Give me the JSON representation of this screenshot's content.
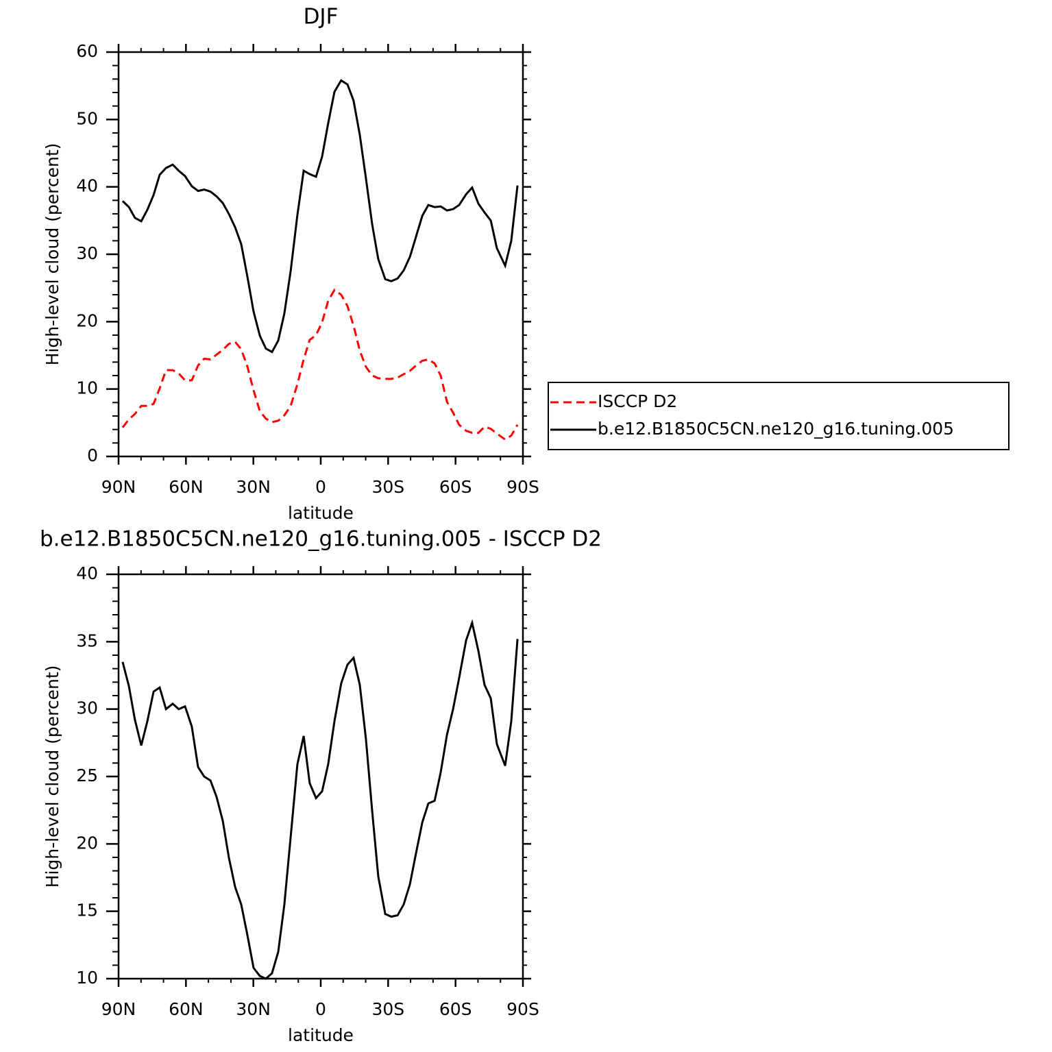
{
  "chart_data": [
    {
      "type": "line",
      "title": "DJF",
      "xlabel": "latitude",
      "ylabel": "High-level cloud (percent)",
      "x": [
        88.2,
        85.4,
        82.7,
        79.9,
        77.2,
        74.4,
        71.7,
        68.9,
        65.9,
        63.2,
        60.4,
        57.4,
        54.6,
        51.9,
        49.1,
        46.4,
        43.6,
        40.9,
        38.1,
        35.4,
        32.6,
        29.9,
        27.1,
        24.4,
        21.7,
        18.9,
        16.2,
        13.4,
        10.4,
        7.6,
        4.9,
        2.1,
        -0.6,
        -3.3,
        -6.1,
        -9.1,
        -11.9,
        -14.6,
        -17.4,
        -20.1,
        -22.9,
        -25.6,
        -28.7,
        -31.4,
        -34.2,
        -36.9,
        -39.7,
        -42.4,
        -45.2,
        -47.9,
        -50.7,
        -53.4,
        -56.2,
        -58.9,
        -61.6,
        -64.7,
        -67.4,
        -70.2,
        -72.9,
        -75.7,
        -78.4,
        -82.1,
        -84.8,
        -87.6
      ],
      "series": [
        {
          "name": "ISCCP D2",
          "color": "#ff0000",
          "style": "dashed",
          "values": [
            4.3,
            5.5,
            6.3,
            7.5,
            7.5,
            7.8,
            10.1,
            12.8,
            12.8,
            12.3,
            11.3,
            11.3,
            13.5,
            14.5,
            14.4,
            15.1,
            15.8,
            16.7,
            17.0,
            15.9,
            13.3,
            9.8,
            6.7,
            5.6,
            5.1,
            5.3,
            6.1,
            7.5,
            10.7,
            14.4,
            17.3,
            18.0,
            19.9,
            23.1,
            24.7,
            24.0,
            22.3,
            19.4,
            15.7,
            13.3,
            12.0,
            11.6,
            11.5,
            11.5,
            11.7,
            12.2,
            12.7,
            13.5,
            14.2,
            14.4,
            13.8,
            12.0,
            8.1,
            6.5,
            4.7,
            3.8,
            3.5,
            3.5,
            4.4,
            4.1,
            3.4,
            2.5,
            3.1,
            4.7
          ]
        },
        {
          "name": "b.e12.B1850C5CN.ne120_g16.tuning.005",
          "color": "#000000",
          "style": "solid",
          "values": [
            37.9,
            37.0,
            35.4,
            34.9,
            36.6,
            38.8,
            41.8,
            42.8,
            43.3,
            42.4,
            41.6,
            40.1,
            39.4,
            39.6,
            39.3,
            38.6,
            37.6,
            36.0,
            34.0,
            31.5,
            26.6,
            21.5,
            17.9,
            16.0,
            15.5,
            17.2,
            21.2,
            27.5,
            35.8,
            42.4,
            41.9,
            41.5,
            44.5,
            49.4,
            54.1,
            55.8,
            55.2,
            52.8,
            47.7,
            41.3,
            34.4,
            29.3,
            26.3,
            26.0,
            26.4,
            27.6,
            29.6,
            32.6,
            35.7,
            37.3,
            37.0,
            37.1,
            36.5,
            36.7,
            37.3,
            38.9,
            39.9,
            37.5,
            36.2,
            35.0,
            30.9,
            28.3,
            32.0,
            40.2
          ]
        }
      ],
      "xlim": [
        90,
        -90
      ],
      "xticks": [
        {
          "value": 90,
          "label": "90N"
        },
        {
          "value": 60,
          "label": "60N"
        },
        {
          "value": 30,
          "label": "30N"
        },
        0,
        {
          "value": -30,
          "label": "30S"
        },
        {
          "value": -60,
          "label": "60S"
        },
        {
          "value": -90,
          "label": "90S"
        }
      ],
      "xminorticks": [
        80,
        70,
        50,
        40,
        20,
        10,
        -10,
        -20,
        -40,
        -50,
        -70,
        -80
      ],
      "ylim": [
        0,
        60
      ],
      "yticks": [
        0,
        10,
        20,
        30,
        40,
        50,
        60
      ],
      "yminorticks": [
        2,
        4,
        6,
        8,
        12,
        14,
        16,
        18,
        22,
        24,
        26,
        28,
        32,
        34,
        36,
        38,
        42,
        44,
        46,
        48,
        52,
        54,
        56,
        58
      ],
      "legend": "right"
    },
    {
      "type": "line",
      "title": "b.e12.B1850C5CN.ne120_g16.tuning.005 - ISCCP D2",
      "xlabel": "latitude",
      "ylabel": "High-level cloud (percent)",
      "x": [
        88.2,
        85.4,
        82.7,
        79.9,
        77.2,
        74.4,
        71.7,
        68.9,
        65.9,
        63.2,
        60.4,
        57.4,
        54.6,
        51.9,
        49.1,
        46.4,
        43.6,
        40.9,
        38.1,
        35.4,
        32.6,
        29.9,
        27.1,
        24.4,
        21.7,
        18.9,
        16.2,
        13.4,
        10.4,
        7.6,
        4.9,
        2.1,
        -0.6,
        -3.3,
        -6.1,
        -9.1,
        -11.9,
        -14.6,
        -17.4,
        -20.1,
        -22.9,
        -25.6,
        -28.7,
        -31.4,
        -34.2,
        -36.9,
        -39.7,
        -42.4,
        -45.2,
        -47.9,
        -50.7,
        -53.4,
        -56.2,
        -58.9,
        -61.6,
        -64.7,
        -67.4,
        -70.2,
        -72.9,
        -75.7,
        -78.4,
        -82.1,
        -84.8,
        -87.6
      ],
      "series": [
        {
          "name": "b.e12.B1850C5CN.ne120_g16.tuning.005 - ISCCP D2",
          "color": "#000000",
          "style": "solid",
          "values": [
            33.5,
            31.7,
            29.2,
            27.3,
            29.1,
            31.3,
            31.6,
            30.0,
            30.4,
            30.0,
            30.2,
            28.7,
            25.7,
            25.0,
            24.7,
            23.5,
            21.7,
            19.0,
            16.8,
            15.5,
            13.2,
            10.8,
            10.2,
            10.0,
            10.4,
            12.0,
            15.5,
            20.5,
            25.9,
            28.0,
            24.5,
            23.4,
            23.9,
            25.9,
            29.1,
            31.9,
            33.3,
            33.8,
            31.8,
            27.8,
            22.4,
            17.6,
            14.8,
            14.6,
            14.7,
            15.5,
            17.0,
            19.3,
            21.6,
            23.0,
            23.2,
            25.3,
            28.1,
            30.0,
            32.3,
            35.1,
            36.4,
            34.3,
            31.8,
            30.8,
            27.4,
            25.8,
            29.1,
            35.2
          ]
        }
      ],
      "xlim": [
        90,
        -90
      ],
      "xticks": [
        {
          "value": 90,
          "label": "90N"
        },
        {
          "value": 60,
          "label": "60N"
        },
        {
          "value": 30,
          "label": "30N"
        },
        0,
        {
          "value": -30,
          "label": "30S"
        },
        {
          "value": -60,
          "label": "60S"
        },
        {
          "value": -90,
          "label": "90S"
        }
      ],
      "xminorticks": [
        80,
        70,
        50,
        40,
        20,
        10,
        -10,
        -20,
        -40,
        -50,
        -70,
        -80
      ],
      "ylim": [
        10,
        40
      ],
      "yticks": [
        10,
        15,
        20,
        25,
        30,
        35,
        40
      ],
      "yminorticks": [
        11,
        12,
        13,
        14,
        16,
        17,
        18,
        19,
        21,
        22,
        23,
        24,
        26,
        27,
        28,
        29,
        31,
        32,
        33,
        34,
        36,
        37,
        38,
        39
      ]
    }
  ]
}
